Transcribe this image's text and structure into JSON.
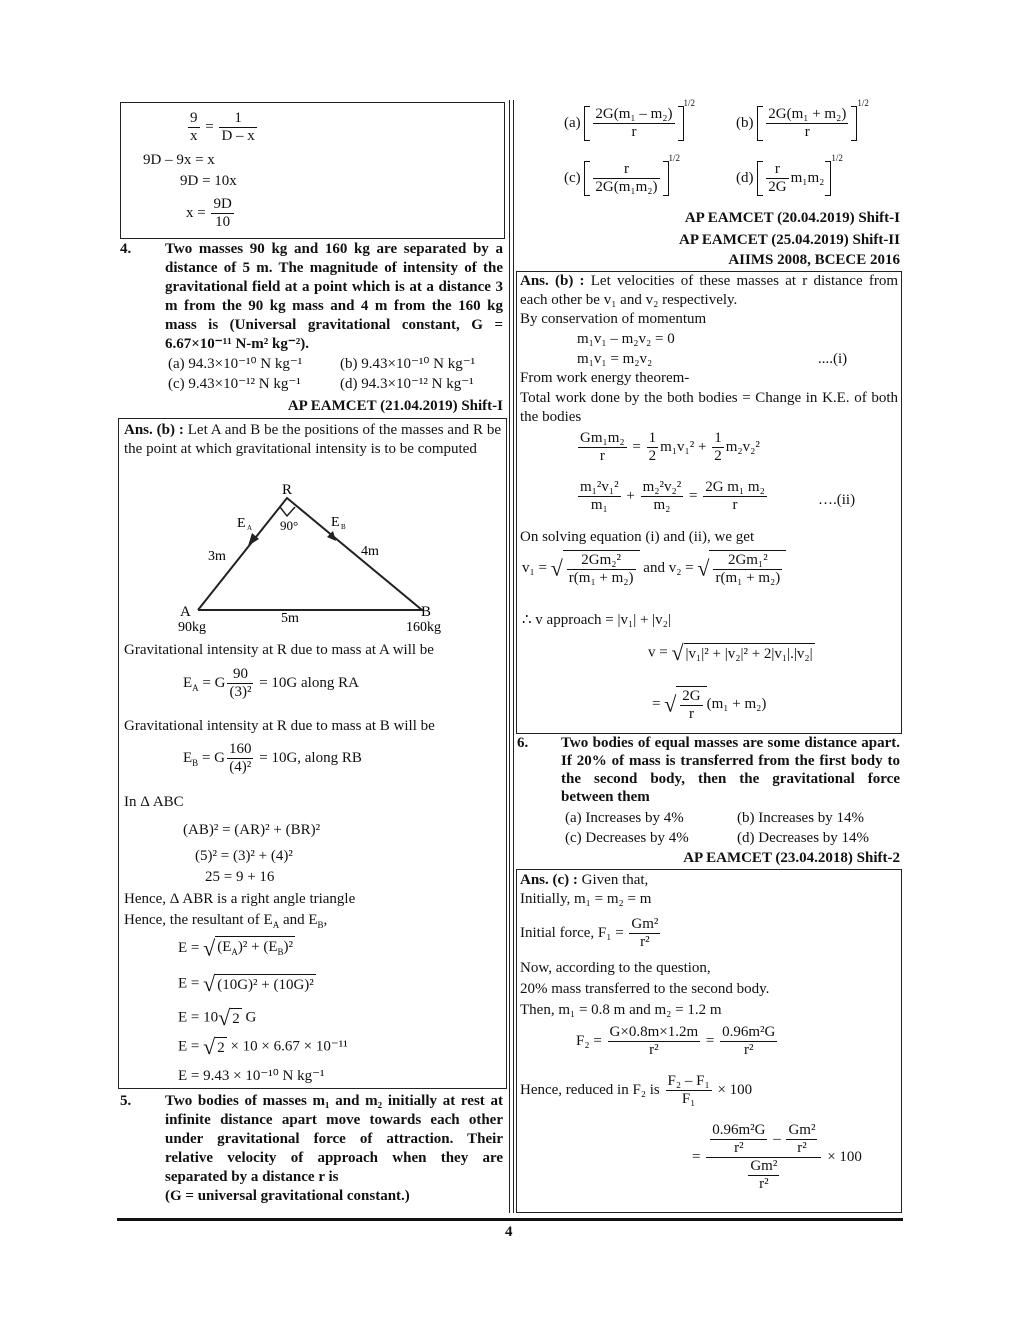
{
  "left": {
    "box1": [
      [
        {
          "f": [
            "9",
            "x"
          ]
        },
        " = ",
        {
          "f": [
            "1",
            "D – x"
          ]
        }
      ],
      [
        "9D – 9x = x"
      ],
      [
        "9D = 10x"
      ],
      [
        "x = ",
        {
          "f": [
            "9D",
            "10"
          ]
        }
      ]
    ],
    "q4": {
      "number": "4.",
      "text": "Two masses 90 kg and 160 kg are separated by a distance of 5 m. The magnitude of intensity of the gravitational field at a point which is at a distance 3 m from the 90 kg mass and 4 m from the 160 kg mass is (Universal gravitational constant, G = 6.67×10⁻¹¹ N-m² kg⁻²).",
      "options": [
        "(a)  94.3×10⁻¹⁰ N kg⁻¹",
        "(b)  9.43×10⁻¹⁰ N kg⁻¹",
        "(c)  9.43×10⁻¹² N kg⁻¹",
        "(d)  94.3×10⁻¹² N kg⁻¹"
      ],
      "source": "AP EAMCET (21.04.2019) Shift-I"
    },
    "ans4": {
      "intro": [
        {
          "b": "Ans. (b) :"
        },
        " Let A and B be the positions of the masses and R be the point at which gravitational intensity is to be computed"
      ],
      "diagram": {
        "R": "R",
        "EA": "E",
        "EA_sub": "A",
        "angle": "90°",
        "EB": "E",
        "EB_sub": "B",
        "AR": "3m",
        "BR": "4m",
        "AB": "5m",
        "A": "A",
        "A_mass": "90kg",
        "B": "B",
        "B_mass": "160kg"
      },
      "lines": [
        [
          "Gravitational intensity at R due to mass at A will be"
        ],
        [
          "E",
          {
            "sub": "A"
          },
          " = G",
          {
            "f": [
              "90",
              "(3)²"
            ]
          },
          " = 10G along RA"
        ],
        [
          "Gravitational intensity at R due to mass at B will be"
        ],
        [
          "E",
          {
            "sub": "B"
          },
          " = G",
          {
            "f": [
              "160",
              "(4)²"
            ]
          },
          " = 10G, along RB"
        ],
        [
          "In Δ ABC"
        ],
        [
          "(AB)² = (AR)² + (BR)²"
        ],
        [
          "(5)² = (3)² + (4)²"
        ],
        [
          "25 = 9 + 16"
        ],
        [
          "Hence, Δ ABR is a right angle triangle"
        ],
        [
          "Hence, the resultant of E",
          {
            "sub": "A"
          },
          " and E",
          {
            "sub": "B"
          },
          ","
        ],
        [
          "E = ",
          {
            "sq": [
              "(E",
              {
                "sub": "A"
              },
              ")² + (E",
              {
                "sub": "B"
              },
              ")²"
            ]
          }
        ],
        [
          "E = ",
          {
            "sq": [
              "(10G)² + (10G)²"
            ]
          }
        ],
        [
          "E = 10",
          {
            "sq": [
              "2"
            ]
          },
          " G"
        ],
        [
          "E = ",
          {
            "sq": [
              "2"
            ]
          },
          " × 10 × 6.67 × 10⁻¹¹"
        ],
        [
          "E = 9.43 × 10⁻¹⁰ N kg⁻¹"
        ]
      ]
    },
    "q5": {
      "number": "5.",
      "text": "Two bodies of masses m₁ and m₂ initially at rest at infinite distance apart move towards each other under gravitational force of attraction. Their relative velocity of approach when they are separated by a distance r is",
      "note": "(G = universal gravitational constant.)"
    }
  },
  "right": {
    "q5_options": [
      [
        "(a)  ",
        {
          "br": [
            {
              "f": [
                "2G(m₁ – m₂)",
                "r"
              ]
            }
          ],
          "exp": "1/2"
        }
      ],
      [
        "(b)  ",
        {
          "br": [
            {
              "f": [
                "2G(m₁ + m₂)",
                "r"
              ]
            }
          ],
          "exp": "1/2"
        }
      ],
      [
        "(c)  ",
        {
          "br": [
            {
              "f": [
                "r",
                "2G(m₁m₂)"
              ]
            }
          ],
          "exp": "1/2"
        }
      ],
      [
        "(d)  ",
        {
          "br": [
            {
              "f": [
                "r",
                "2G"
              ]
            },
            "m₁m₂"
          ],
          "exp": "1/2"
        }
      ]
    ],
    "q5_sources": [
      "AP EAMCET (20.04.2019) Shift-I",
      "AP EAMCET (25.04.2019) Shift-II",
      "AIIMS 2008, BCECE 2016"
    ],
    "ans5": [
      [
        {
          "b": "Ans. (b) :"
        },
        " Let velocities of these masses at r distance from each other be v₁ and v₂ respectively."
      ],
      [
        "By conservation of momentum"
      ],
      [
        "m₁v₁ – m₂v₂ = 0"
      ],
      [
        "m₁v₁ = m₂v₂"
      ],
      [
        "....(i)"
      ],
      [
        "From work energy theorem-"
      ],
      [
        "Total work done by the both bodies = Change in K.E. of both the bodies"
      ],
      [
        {
          "f": [
            "Gm₁m₂",
            "r"
          ]
        },
        " = ",
        {
          "f": [
            "1",
            "2"
          ]
        },
        "m₁v₁² + ",
        {
          "f": [
            "1",
            "2"
          ]
        },
        "m₂v₂²"
      ],
      [
        {
          "f": [
            "m₁²v₁²",
            "m₁"
          ]
        },
        " + ",
        {
          "f": [
            "m₂²v₂²",
            "m₂"
          ]
        },
        " = ",
        {
          "f": [
            "2G m₁ m₂",
            "r"
          ]
        }
      ],
      [
        "….(ii)"
      ],
      [
        "On solving equation (i) and (ii), we get"
      ],
      [
        "v₁ = ",
        {
          "sq": [
            {
              "f": [
                "2Gm₂²",
                "r(m₁ + m₂)"
              ]
            }
          ]
        },
        "   and   v₂ = ",
        {
          "sq": [
            {
              "f": [
                "2Gm₁²",
                "r(m₁ + m₂)"
              ]
            }
          ]
        }
      ],
      [
        "∴      v approach  =  |v₁| + |v₂|"
      ],
      [
        "v = ",
        {
          "sq": [
            "|v₁|² + |v₂|² + 2|v₁|.|v₂|"
          ]
        }
      ],
      [
        "= ",
        {
          "sq": [
            {
              "f": [
                "2G",
                "r"
              ]
            }
          ]
        },
        "(m₁ + m₂)"
      ]
    ],
    "q6": {
      "number": "6.",
      "text": "Two bodies of equal masses are some distance apart. If 20% of mass is transferred from the first body to the second body, then the gravitational force between them",
      "options": [
        "(a)  Increases by 4%",
        "(b)  Increases by 14%",
        "(c)  Decreases by 4%",
        "(d)  Decreases by 14%"
      ],
      "source": "AP EAMCET (23.04.2018) Shift-2"
    },
    "ans6": [
      [
        {
          "b": "Ans. (c) :"
        },
        " Given that,"
      ],
      [
        "Initially,            m₁ = m₂ = m"
      ],
      [
        "Initial force,      F₁ = ",
        {
          "f": [
            "Gm²",
            "r²"
          ]
        }
      ],
      [
        "Now, according to the question,"
      ],
      [
        "20% mass transferred to the second body."
      ],
      [
        "Then, m₁ = 0.8 m and m₂ = 1.2 m"
      ],
      [
        "F₂ = ",
        {
          "f": [
            "G×0.8m×1.2m",
            "r²"
          ]
        },
        " = ",
        {
          "f": [
            "0.96m²G",
            "r²"
          ]
        }
      ],
      [
        "Hence, reduced in F₂ is ",
        {
          "f": [
            "F₂ – F₁",
            "F₁"
          ]
        },
        " × 100"
      ],
      [
        "= ",
        {
          "f": [
            [
              {
                "f": [
                  "0.96m²G",
                  "r²"
                ]
              },
              " – ",
              {
                "f": [
                  "Gm²",
                  "r²"
                ]
              }
            ],
            [
              {
                "f": [
                  "Gm²",
                  "r²"
                ]
              }
            ]
          ]
        },
        " × 100"
      ]
    ]
  },
  "page_number": "4"
}
